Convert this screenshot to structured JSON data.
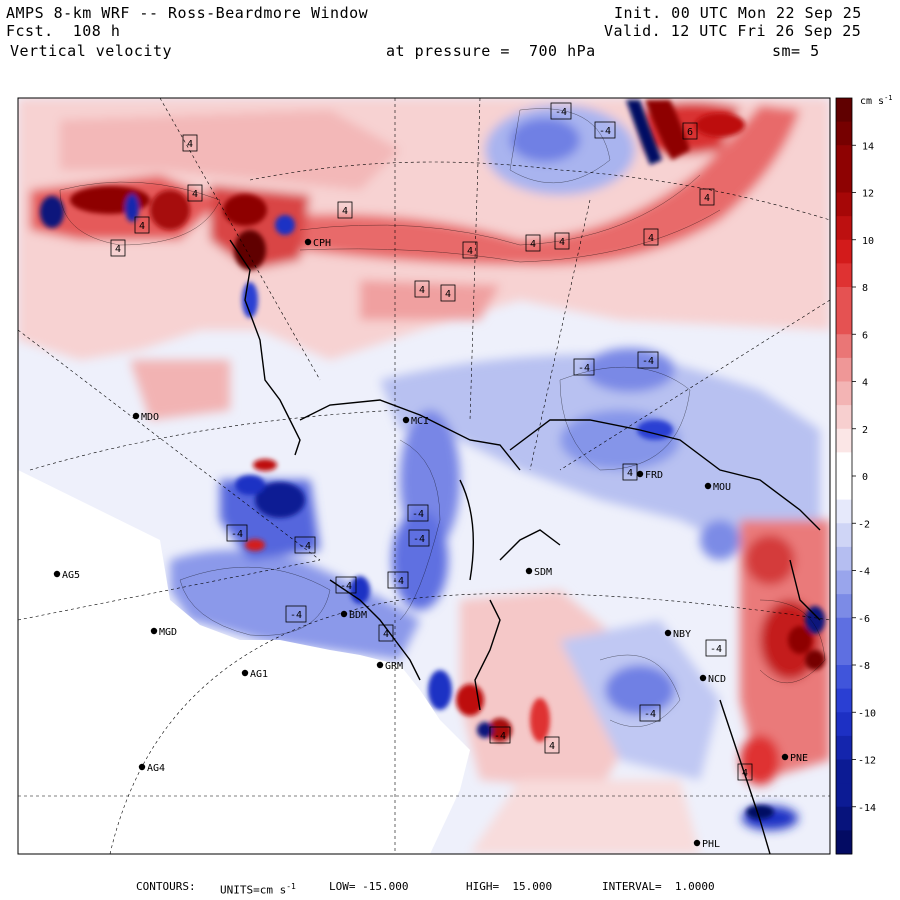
{
  "header": {
    "model": "AMPS 8-km WRF -- Ross-Beardmore Window",
    "fcst_label": "Fcst.",
    "fcst_value": "108 h",
    "field": "Vertical velocity",
    "level_label": "at pressure =",
    "level_value": "700 hPa",
    "init": "Init. 00 UTC Mon 22 Sep 25",
    "valid": "Valid. 12 UTC Fri 26 Sep 25",
    "smoothing": "sm= 5"
  },
  "colorbar": {
    "units_label": "cm s",
    "units_exp": "-1",
    "ticks": [
      "14",
      "12",
      "10",
      "8",
      "6",
      "4",
      "2",
      "0",
      "-2",
      "-4",
      "-6",
      "-8",
      "-10",
      "-12",
      "-14"
    ],
    "min": -16,
    "max": 16,
    "colors_positive": [
      "#fbe6e6",
      "#f7cfcf",
      "#f3b4b4",
      "#ef9797",
      "#ea7676",
      "#e55252",
      "#df3232",
      "#d31b1b",
      "#bd1010",
      "#a60707",
      "#8e0202",
      "#760000",
      "#600000"
    ],
    "colors_negative": [
      "#e6e9fb",
      "#cfd5f6",
      "#b5bef1",
      "#99a5ec",
      "#7c8be6",
      "#5e6fe1",
      "#4055db",
      "#2a3fd3",
      "#1d30c4",
      "#1425ad",
      "#0c1b94",
      "#07137c",
      "#030b63"
    ]
  },
  "footer": {
    "contours_label": "CONTOURS:",
    "units_text": "UNITS=cm s",
    "units_exp": "-1",
    "low_label": "LOW=",
    "low_value": "-15.000",
    "high_label": "HIGH=",
    "high_value": "15.000",
    "interval_label": "INTERVAL=",
    "interval_value": "1.0000"
  },
  "stations": [
    {
      "id": "MDO",
      "lon": 136,
      "lat": 416
    },
    {
      "id": "MCI",
      "lon": 406,
      "lat": 420
    },
    {
      "id": "FRD",
      "lon": 640,
      "lat": 474
    },
    {
      "id": "MOU",
      "lon": 708,
      "lat": 486
    },
    {
      "id": "AG5",
      "lon": 57,
      "lat": 574
    },
    {
      "id": "SDM",
      "lon": 529,
      "lat": 571
    },
    {
      "id": "BDM",
      "lon": 344,
      "lat": 614
    },
    {
      "id": "MGD",
      "lon": 154,
      "lat": 631
    },
    {
      "id": "NBY",
      "lon": 668,
      "lat": 633
    },
    {
      "id": "GRM",
      "lon": 380,
      "lat": 665
    },
    {
      "id": "AG1",
      "lon": 245,
      "lat": 673
    },
    {
      "id": "NCD",
      "lon": 703,
      "lat": 678
    },
    {
      "id": "PNE",
      "lon": 785,
      "lat": 757
    },
    {
      "id": "AG4",
      "lon": 142,
      "lat": 767
    },
    {
      "id": "PHL",
      "lon": 697,
      "lat": 843
    },
    {
      "id": "CPH",
      "lon": 308,
      "lat": 242
    }
  ],
  "box_labels": [
    "4",
    "-4",
    "4",
    "4",
    "4",
    "4",
    "4",
    "4",
    "4",
    "4",
    "4",
    "4",
    "4",
    "-4",
    "-4",
    "-4",
    "-4",
    "-4",
    "-4",
    "-4",
    "-4",
    "-4",
    "4",
    "-4",
    "4",
    "4",
    "4",
    "6",
    "-4",
    "-4",
    "-4"
  ],
  "icons": {
    "station_marker": "filled-dot",
    "contour_label": "boxed-value"
  }
}
